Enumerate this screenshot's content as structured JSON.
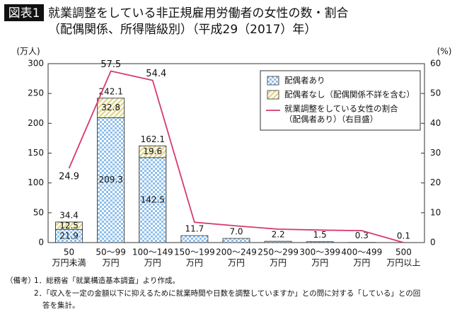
{
  "chart_data": {
    "type": "bar",
    "badge": "図表1",
    "title": "就業調整をしている非正規雇用労働者の女性の数・割合",
    "subtitle": "（配偶関係、所得階級別）（平成29（2017）年）",
    "y_unit": "(万人)",
    "y2_unit": "(%)",
    "categories": [
      [
        "50",
        "万円未満"
      ],
      [
        "50～99",
        "万円"
      ],
      [
        "100～149",
        "万円"
      ],
      [
        "150～199",
        "万円"
      ],
      [
        "200～249",
        "万円"
      ],
      [
        "250～299",
        "万円"
      ],
      [
        "300～399",
        "万円"
      ],
      [
        "400～499",
        "万円"
      ],
      [
        "500",
        "万円以上"
      ]
    ],
    "ylim": [
      0,
      300
    ],
    "yticks": [
      0,
      50,
      100,
      150,
      200,
      250,
      300
    ],
    "y2lim": [
      0,
      60
    ],
    "y2ticks": [
      0,
      10,
      20,
      30,
      40,
      50,
      60
    ],
    "series": [
      {
        "name": [
          "配偶者あり"
        ],
        "color": "#8fc0ec",
        "values": [
          21.9,
          209.3,
          142.5,
          null,
          null,
          null,
          null,
          null,
          null
        ]
      },
      {
        "name": [
          "配偶者なし（配偶関係不詳を含む）"
        ],
        "color": "#e8e2a0",
        "values": [
          12.5,
          32.8,
          19.6,
          null,
          null,
          null,
          null,
          null,
          null
        ]
      },
      {
        "name": [
          "就業調整をしている女性の割合",
          "（配偶者あり）（右目盛）"
        ],
        "color": "#d63a6a",
        "axis": "y2",
        "type": "line",
        "values": [
          24.9,
          57.5,
          54.4,
          6.8,
          5.6,
          4.5,
          4.2,
          4.0,
          0
        ],
        "value_labels": [
          "24.9",
          "57.5",
          "54.4",
          null,
          null,
          null,
          null,
          null,
          null
        ]
      }
    ],
    "totals": {
      "values": [
        34.4,
        242.1,
        162.1,
        11.7,
        7.0,
        2.2,
        1.5,
        0.3,
        0.1
      ],
      "value_labels": [
        "34.4",
        "242.1",
        "162.1",
        "11.7",
        "7.0",
        "2.2",
        "1.5",
        "0.3",
        "0.1"
      ]
    },
    "notes": [
      "（備考）",
      "1．総務省「就業構造基本調査」より作成。",
      "2．「収入を一定の金額以下に抑えるために就業時間や日数を調整していますか」との問に対する「している」との回",
      "答を集計。"
    ]
  }
}
